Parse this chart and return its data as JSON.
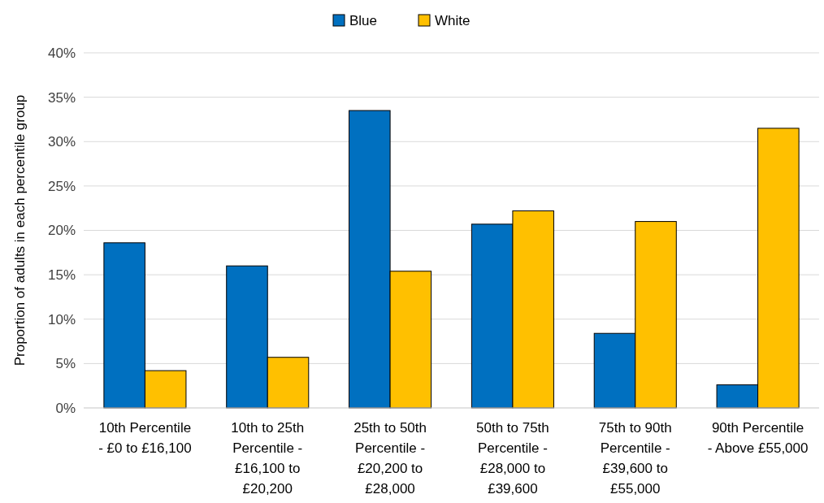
{
  "chart_data": {
    "type": "bar",
    "ylabel": "Proportion of adults in each percentile group",
    "categories": [
      "10th Percentile - £0 to £16,100",
      "10th to 25th Percentile - £16,100 to £20,200",
      "25th to 50th Percentile - £20,200 to £28,000",
      "50th to 75th Percentile - £28,000 to £39,600",
      "75th to 90th Percentile - £39,600 to £55,000",
      "90th Percentile - Above £55,000"
    ],
    "series": [
      {
        "name": "Blue",
        "color": "#0070c0",
        "values": [
          18.6,
          16.0,
          33.5,
          20.7,
          8.4,
          2.6
        ]
      },
      {
        "name": "White",
        "color": "#ffc000",
        "values": [
          4.2,
          5.7,
          15.4,
          22.2,
          21.0,
          31.5
        ]
      }
    ],
    "ylim": [
      0,
      40
    ],
    "yticks": [
      {
        "value": 0,
        "label": "0%"
      },
      {
        "value": 5,
        "label": "5%"
      },
      {
        "value": 10,
        "label": "10%"
      },
      {
        "value": 15,
        "label": "15%"
      },
      {
        "value": 20,
        "label": "20%"
      },
      {
        "value": 25,
        "label": "25%"
      },
      {
        "value": 30,
        "label": "30%"
      },
      {
        "value": 35,
        "label": "35%"
      },
      {
        "value": 40,
        "label": "40%"
      }
    ],
    "grid": "y",
    "legend": "top"
  }
}
